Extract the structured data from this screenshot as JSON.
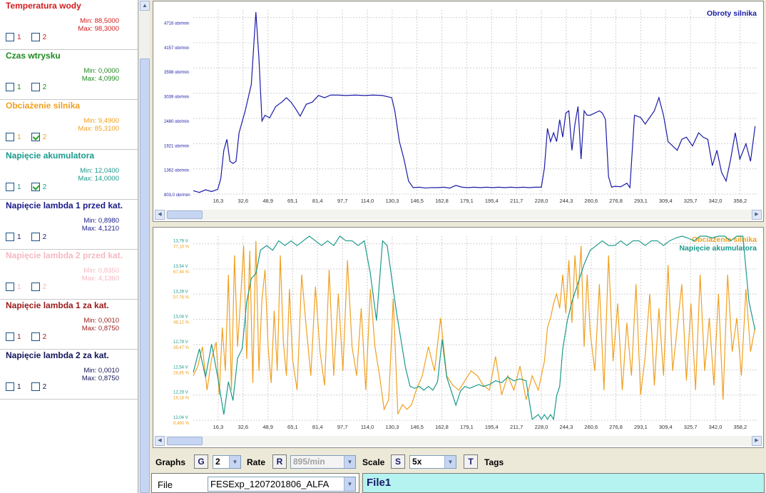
{
  "sensors": [
    {
      "title": "Temperatura wody",
      "min": "Min: 88,5000",
      "max": "Max: 98,3000",
      "color": "#d41c1c",
      "cb1": "1",
      "cb2": "2",
      "checked1": false,
      "checked2": false
    },
    {
      "title": "Czas wtrysku",
      "min": "Min: 0,0000",
      "max": "Max: 4,0990",
      "color": "#1e8a1e",
      "cb1": "1",
      "cb2": "2",
      "checked1": false,
      "checked2": false
    },
    {
      "title": "Obciażenie silnika",
      "min": "Min: 9,4900",
      "max": "Max: 85,3100",
      "color": "#f0a020",
      "cb1": "1",
      "cb2": "2",
      "checked1": false,
      "checked2": true
    },
    {
      "title": "Napięcie akumulatora",
      "min": "Min: 12,0400",
      "max": "Max: 14,0000",
      "color": "#1a9a8c",
      "cb1": "1",
      "cb2": "2",
      "checked1": false,
      "checked2": true
    },
    {
      "title": "Napięcie lambda 1 przed kat.",
      "min": "Min: 0,8980",
      "max": "Max: 4,1210",
      "color": "#1a1a8a",
      "cb1": "1",
      "cb2": "2",
      "checked1": false,
      "checked2": false
    },
    {
      "title": "Napięcie lambda 2 przed kat.",
      "min": "Min: 0,8350",
      "max": "Max: 4,1360",
      "color": "#f6b8c4",
      "cb1": "1",
      "cb2": "2",
      "checked1": false,
      "checked2": false
    },
    {
      "title": "Napięcie lambda 1 za kat.",
      "min": "Min: 0,0010",
      "max": "Max: 0,8750",
      "color": "#9a1a1a",
      "cb1": "1",
      "cb2": "2",
      "checked1": false,
      "checked2": false
    },
    {
      "title": "Napięcie lambda 2 za kat.",
      "min": "Min: 0,0010",
      "max": "Max: 0,8750",
      "color": "#14145a",
      "cb1": "1",
      "cb2": "2",
      "checked1": false,
      "checked2": false
    }
  ],
  "chart_data": [
    {
      "type": "line",
      "x_ticks": [
        "16,3",
        "32,6",
        "48,9",
        "65,1",
        "81,4",
        "97,7",
        "114,0",
        "130,3",
        "146,5",
        "162,8",
        "179,1",
        "195,4",
        "211,7",
        "228,0",
        "244,3",
        "260,6",
        "276,8",
        "293,1",
        "309,4",
        "325,7",
        "342,0",
        "358,2"
      ],
      "x_range": [
        0,
        370
      ],
      "ylim": [
        803,
        5000
      ],
      "y_ticks": [
        "803,0 obr/min",
        "1362 obr/min",
        "1921 obr/min",
        "2480 obr/min",
        "3039 obr/min",
        "3598 obr/min",
        "4157 obr/min",
        "4716 obr/min"
      ],
      "y_tick_values": [
        803,
        1362,
        1921,
        2480,
        3039,
        3598,
        4157,
        4716
      ],
      "grid": true,
      "series": [
        {
          "name": "Obroty silnika",
          "color": "#1a1aa8",
          "x": [
            0,
            4,
            8,
            12,
            16,
            18,
            20,
            22,
            24,
            26,
            28,
            30,
            34,
            38,
            41,
            43,
            45,
            47,
            50,
            54,
            58,
            61,
            64,
            67,
            70,
            74,
            78,
            82,
            86,
            90,
            95,
            100,
            106,
            112,
            118,
            124,
            130,
            132,
            135,
            138,
            141,
            144,
            148,
            152,
            156,
            160,
            164,
            168,
            172,
            176,
            180,
            184,
            188,
            192,
            196,
            200,
            204,
            208,
            212,
            216,
            220,
            224,
            228,
            230,
            232,
            234,
            236,
            238,
            240,
            242,
            244,
            246,
            248,
            250,
            252,
            254,
            256,
            258,
            260,
            263,
            266,
            268,
            270,
            272,
            274,
            276,
            280,
            284,
            286,
            289,
            293,
            296,
            299,
            302,
            305,
            308,
            311,
            314,
            317,
            320,
            323,
            327,
            331,
            334,
            337,
            340,
            343,
            346,
            349,
            352,
            355,
            358,
            362,
            365,
            368
          ],
          "y": [
            880,
            840,
            900,
            860,
            910,
            1150,
            1800,
            2050,
            1550,
            1500,
            1550,
            2200,
            2700,
            3300,
            4950,
            3900,
            2470,
            2600,
            2540,
            2800,
            2900,
            3000,
            2900,
            2750,
            2580,
            2850,
            2900,
            3050,
            3000,
            3060,
            3060,
            3050,
            3060,
            3050,
            3060,
            3050,
            3000,
            2700,
            2000,
            1600,
            1100,
            950,
            960,
            940,
            950,
            950,
            960,
            940,
            1000,
            960,
            950,
            960,
            950,
            960,
            950,
            960,
            950,
            960,
            950,
            960,
            950,
            960,
            960,
            1400,
            2300,
            2000,
            2200,
            2000,
            2500,
            2100,
            2650,
            2700,
            1800,
            2400,
            2800,
            1600,
            2700,
            2600,
            2600,
            2650,
            2700,
            2650,
            2500,
            1200,
            960,
            980,
            970,
            1050,
            950,
            2600,
            2550,
            2400,
            2550,
            2700,
            3000,
            2600,
            2000,
            1900,
            1800,
            2050,
            2100,
            1900,
            2200,
            2100,
            2050,
            1450,
            1800,
            1300,
            1100,
            1600,
            2200,
            1600,
            1950,
            1550,
            2350
          ]
        }
      ]
    },
    {
      "type": "line",
      "x_ticks": [
        "16,3",
        "32,6",
        "48,9",
        "65,1",
        "81,4",
        "97,7",
        "114,0",
        "130,3",
        "146,5",
        "162,8",
        "179,1",
        "195,4",
        "211,7",
        "228,0",
        "244,3",
        "260,6",
        "276,8",
        "293,1",
        "309,4",
        "325,7",
        "342,0",
        "358,2"
      ],
      "x_range": [
        0,
        370
      ],
      "grid": true,
      "y_ticks_battery": [
        "12,04 V",
        "12,29 V",
        "12,54 V",
        "12,79 V",
        "13,04 V",
        "13,29 V",
        "13,54 V",
        "13,79 V"
      ],
      "y_ticks_load": [
        "9,490 %",
        "19,18 %",
        "28,85 %",
        "38,47 %",
        "48,12 %",
        "57,78 %",
        "67,44 %",
        "77,10 %"
      ],
      "series": [
        {
          "name": "Obciażenie silnika",
          "color": "#f0a020",
          "unit": "%",
          "ylim": [
            9.49,
            86.0
          ],
          "x": [
            0,
            3,
            6,
            9,
            12,
            15,
            17,
            19,
            21,
            23,
            25,
            27,
            29,
            31,
            33,
            35,
            37,
            39,
            41,
            43,
            45,
            47,
            49,
            51,
            53,
            55,
            57,
            59,
            61,
            63,
            65,
            68,
            71,
            74,
            77,
            80,
            83,
            86,
            89,
            92,
            95,
            98,
            101,
            104,
            107,
            110,
            113,
            116,
            119,
            122,
            125,
            128,
            131,
            134,
            137,
            140,
            143,
            146,
            150,
            154,
            158,
            162,
            166,
            170,
            174,
            178,
            182,
            186,
            190,
            194,
            198,
            202,
            206,
            210,
            214,
            218,
            222,
            226,
            230,
            232,
            234,
            236,
            238,
            240,
            242,
            244,
            246,
            248,
            250,
            252,
            254,
            256,
            258,
            260,
            263,
            266,
            269,
            272,
            275,
            278,
            281,
            284,
            287,
            290,
            293,
            296,
            299,
            302,
            305,
            308,
            311,
            314,
            317,
            320,
            323,
            326,
            329,
            332,
            335,
            338,
            341,
            344,
            347,
            350,
            353,
            356,
            359,
            362,
            365,
            368
          ],
          "y": [
            28,
            32,
            40,
            22,
            35,
            42,
            20,
            48,
            30,
            70,
            22,
            78,
            40,
            60,
            82,
            35,
            80,
            25,
            84,
            30,
            60,
            72,
            40,
            25,
            55,
            30,
            78,
            42,
            28,
            64,
            35,
            22,
            70,
            48,
            28,
            65,
            38,
            24,
            72,
            28,
            62,
            30,
            76,
            40,
            28,
            56,
            22,
            64,
            40,
            28,
            14,
            18,
            60,
            12,
            16,
            14,
            16,
            22,
            28,
            40,
            30,
            52,
            28,
            24,
            22,
            26,
            30,
            28,
            24,
            22,
            36,
            20,
            28,
            22,
            32,
            18,
            28,
            22,
            34,
            48,
            52,
            58,
            62,
            56,
            70,
            54,
            76,
            50,
            78,
            60,
            82,
            40,
            70,
            46,
            30,
            66,
            22,
            78,
            34,
            58,
            22,
            50,
            28,
            66,
            20,
            36,
            62,
            24,
            56,
            28,
            74,
            30,
            48,
            66,
            26,
            58,
            22,
            70,
            30,
            52,
            24,
            62,
            18,
            70,
            38,
            52,
            28,
            64,
            38,
            48
          ]
        },
        {
          "name": "Napięcie akumulatora",
          "color": "#1a9a8c",
          "unit": "V",
          "ylim": [
            12.04,
            14.0
          ],
          "x": [
            0,
            4,
            8,
            12,
            16,
            20,
            23,
            26,
            29,
            32,
            35,
            38,
            41,
            44,
            48,
            52,
            56,
            60,
            64,
            68,
            72,
            76,
            80,
            84,
            88,
            92,
            96,
            100,
            104,
            108,
            112,
            116,
            120,
            124,
            127,
            130,
            133,
            136,
            139,
            142,
            145,
            148,
            151,
            154,
            157,
            160,
            163,
            166,
            169,
            172,
            175,
            178,
            181,
            184,
            187,
            190,
            194,
            198,
            202,
            206,
            210,
            214,
            218,
            222,
            226,
            228,
            230,
            232,
            234,
            236,
            238,
            240,
            242,
            245,
            248,
            252,
            256,
            260,
            264,
            268,
            272,
            276,
            280,
            284,
            288,
            292,
            296,
            300,
            304,
            308,
            312,
            316,
            320,
            324,
            328,
            332,
            336,
            340,
            344,
            348,
            352,
            356,
            360,
            364,
            368
          ],
          "y": [
            12.55,
            12.8,
            12.5,
            12.85,
            12.5,
            12.1,
            12.45,
            12.25,
            12.7,
            12.8,
            13.3,
            13.55,
            13.6,
            13.85,
            13.9,
            13.85,
            13.95,
            13.9,
            13.95,
            13.9,
            13.95,
            14.0,
            13.95,
            13.9,
            13.95,
            13.9,
            14.0,
            13.95,
            13.95,
            13.9,
            13.95,
            13.6,
            13.1,
            13.95,
            13.9,
            13.55,
            13.2,
            12.9,
            12.6,
            12.4,
            12.38,
            12.4,
            12.36,
            12.4,
            12.36,
            12.45,
            12.9,
            12.5,
            12.35,
            12.2,
            12.35,
            12.4,
            12.38,
            12.4,
            12.42,
            12.4,
            12.42,
            12.46,
            12.44,
            12.5,
            12.46,
            12.48,
            12.46,
            12.05,
            12.1,
            12.05,
            12.1,
            12.05,
            12.1,
            12.05,
            12.3,
            12.4,
            12.8,
            13.1,
            13.3,
            13.5,
            13.7,
            13.85,
            13.9,
            13.95,
            13.9,
            13.9,
            13.95,
            13.9,
            13.95,
            13.95,
            13.9,
            13.95,
            13.95,
            13.9,
            13.95,
            13.98,
            14.0,
            13.98,
            13.95,
            14.0,
            14.0,
            13.98,
            14.0,
            14.0,
            13.95,
            14.0,
            14.0,
            13.3,
            13.0
          ]
        }
      ]
    }
  ],
  "toolbar": {
    "graphs_label": "Graphs",
    "graphs_key": "G",
    "graphs_value": "2",
    "rate_label": "Rate",
    "rate_key": "R",
    "rate_value": "895/min",
    "scale_label": "Scale",
    "scale_key": "S",
    "scale_value": "5x",
    "tags_key": "T",
    "tags_label": "Tags"
  },
  "file_panel": {
    "label": "File",
    "value": "FESExp_1207201806_ALFA"
  },
  "info_panel": {
    "title": "File1"
  },
  "icons": {
    "dropdown": "chevron-down-icon",
    "scroll_up": "arrow-up-icon",
    "scroll_left": "arrow-left-icon",
    "scroll_right": "arrow-right-icon"
  }
}
